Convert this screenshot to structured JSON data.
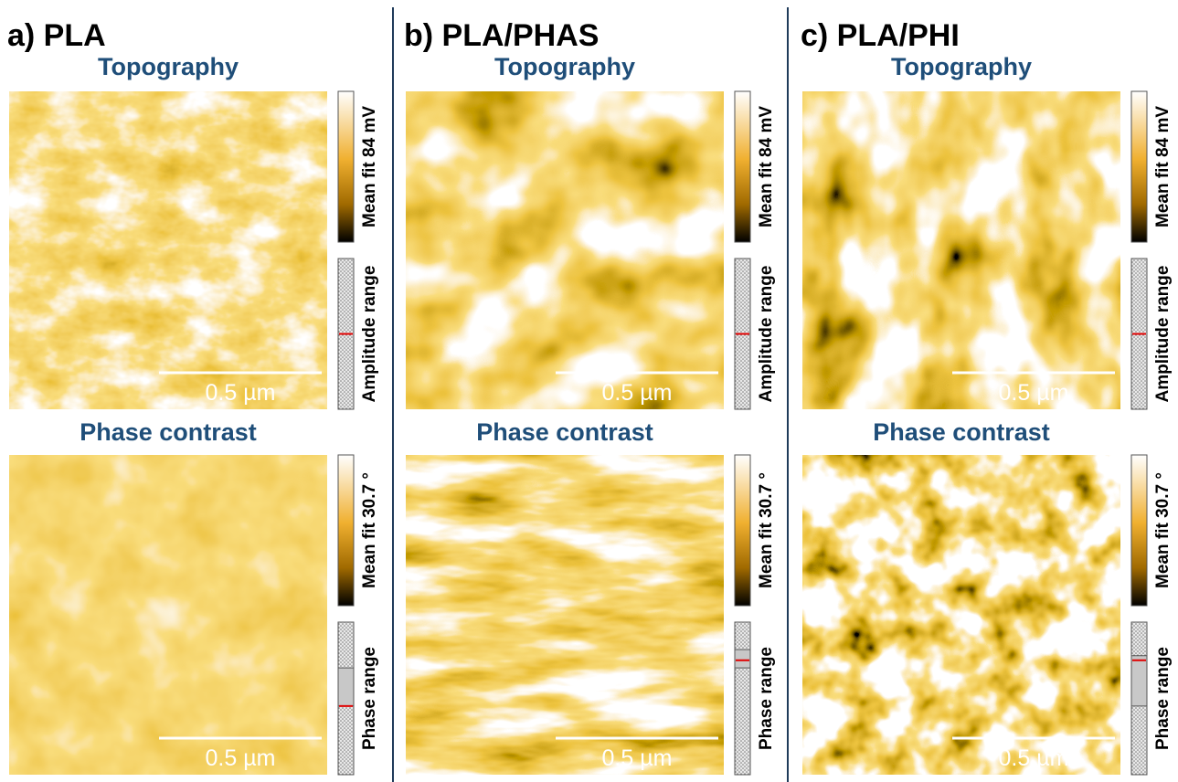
{
  "panels": [
    {
      "title": "a) PLA",
      "topography": {
        "label": "Topography",
        "colorbar_label": "Mean fit 84 mV",
        "range_label": "Amplitude range",
        "scale_bar": "0.5 µm"
      },
      "phase": {
        "label": "Phase contrast",
        "colorbar_label": "Mean fit 30.7 °",
        "range_label": "Phase range",
        "scale_bar": "0.5 µm"
      }
    },
    {
      "title": "b) PLA/PHAS",
      "topography": {
        "label": "Topography",
        "colorbar_label": "Mean fit 84 mV",
        "range_label": "Amplitude range",
        "scale_bar": "0.5 µm"
      },
      "phase": {
        "label": "Phase contrast",
        "colorbar_label": "Mean fit 30.7 °",
        "range_label": "Phase range",
        "scale_bar": "0.5 µm"
      }
    },
    {
      "title": "c) PLA/PHI",
      "topography": {
        "label": "Topography",
        "colorbar_label": "Mean fit 84 mV",
        "range_label": "Amplitude range",
        "scale_bar": "0.5 µm"
      },
      "phase": {
        "label": "Phase contrast",
        "colorbar_label": "Mean fit 30.7 °",
        "range_label": "Phase range",
        "scale_bar": "0.5 µm"
      }
    }
  ]
}
